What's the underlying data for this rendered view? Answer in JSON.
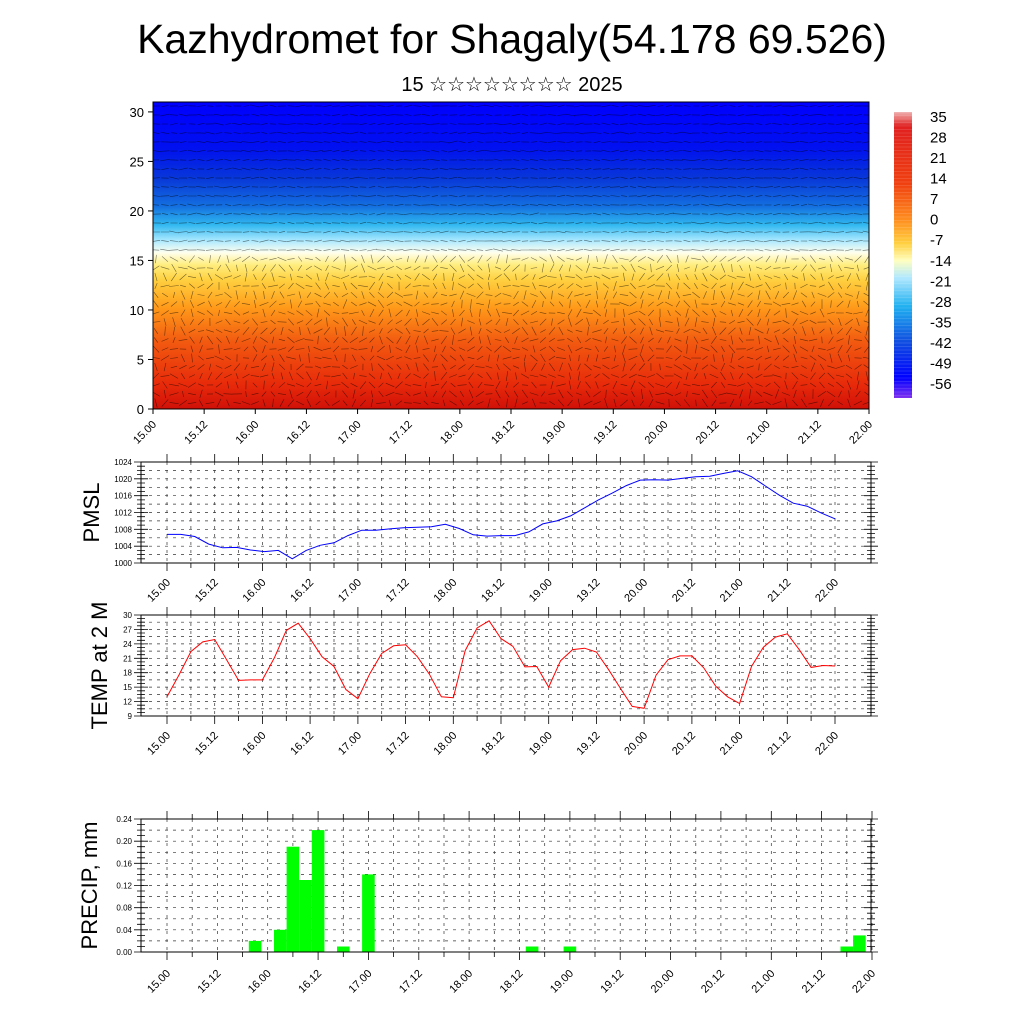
{
  "title": "Kazhydromet for Shagaly(54.178 69.526)",
  "subtitle": "15 ☆☆☆☆☆☆☆☆ 2025",
  "date_ticks": [
    "15.00",
    "15.12",
    "16.00",
    "16.12",
    "17.00",
    "17.12",
    "18.00",
    "18.12",
    "19.00",
    "19.12",
    "20.00",
    "20.12",
    "21.00",
    "21.12",
    "22.00"
  ],
  "chart_data": [
    {
      "type": "heatmap",
      "description_colorbar": "temperature",
      "ylim": [
        0,
        31
      ],
      "yticks": [
        "0",
        "5",
        "10",
        "15",
        "20",
        "25",
        "30"
      ],
      "xticks": [
        "15.00",
        "15.12",
        "16.00",
        "16.12",
        "17.00",
        "17.12",
        "18.00",
        "18.12",
        "19.00",
        "19.12",
        "20.00",
        "20.12",
        "21.00",
        "21.12",
        "22.00"
      ],
      "colorbar_labels": [
        "35",
        "28",
        "21",
        "14",
        "7",
        "0",
        "-7",
        "-14",
        "-21",
        "-28",
        "-35",
        "-42",
        "-49",
        "-56"
      ],
      "colorbar_range": [
        -63,
        42
      ],
      "colors": {
        "hot": "#e01a0a",
        "warm": "#ff8800",
        "mild": "#ffd040",
        "neutral": "#ffffc0",
        "cool": "#80d8ff",
        "cold": "#0a4ae0",
        "coldest": "#0000ff"
      }
    },
    {
      "type": "line",
      "ylabel": "PMSL",
      "ylim": [
        1000,
        1024
      ],
      "yticks": [
        "1000",
        "1004",
        "1008",
        "1012",
        "1016",
        "1020",
        "1024"
      ],
      "xticks": [
        "15.00",
        "15.12",
        "16.00",
        "16.12",
        "17.00",
        "17.12",
        "18.00",
        "18.12",
        "19.00",
        "19.12",
        "20.00",
        "20.12",
        "21.00",
        "21.12",
        "22.00"
      ],
      "color": "#0000ff",
      "values": [
        1006.8,
        1006.8,
        1006.3,
        1004.5,
        1003.6,
        1003.7,
        1003.1,
        1002.7,
        1003.0,
        1001.0,
        1003.0,
        1004.2,
        1004.8,
        1006.5,
        1007.8,
        1007.8,
        1008.1,
        1008.4,
        1008.5,
        1008.6,
        1009.2,
        1008.2,
        1006.7,
        1006.4,
        1006.5,
        1006.5,
        1007.4,
        1009.3,
        1010.0,
        1011.2,
        1013.1,
        1015.0,
        1016.6,
        1018.4,
        1019.7,
        1019.8,
        1019.7,
        1020.1,
        1020.5,
        1020.6,
        1021.3,
        1021.9,
        1020.5,
        1018.3,
        1016.1,
        1014.2,
        1013.5,
        1011.9,
        1010.5
      ]
    },
    {
      "type": "line",
      "ylabel": "TEMP at 2 M",
      "ylim": [
        9,
        30
      ],
      "yticks": [
        "9",
        "12",
        "15",
        "18",
        "21",
        "24",
        "27",
        "30"
      ],
      "xticks": [
        "15.00",
        "15.12",
        "16.00",
        "16.12",
        "17.00",
        "17.12",
        "18.00",
        "18.12",
        "19.00",
        "19.12",
        "20.00",
        "20.12",
        "21.00",
        "21.12",
        "22.00"
      ],
      "color": "#ff0000",
      "values": [
        13.0,
        17.5,
        22.4,
        24.4,
        24.9,
        20.7,
        16.4,
        16.5,
        16.5,
        21.1,
        26.8,
        28.3,
        25.1,
        21.3,
        19.3,
        14.5,
        12.6,
        17.8,
        22.0,
        23.6,
        23.8,
        21.3,
        17.7,
        13.0,
        12.8,
        22.6,
        27.3,
        28.8,
        25.1,
        23.5,
        19.2,
        19.3,
        15.0,
        20.5,
        22.8,
        23.1,
        22.3,
        18.7,
        14.8,
        11.0,
        10.6,
        17.5,
        20.7,
        21.5,
        21.5,
        19.0,
        15.2,
        13.0,
        11.6,
        19.3,
        23.3,
        25.4,
        26.1,
        22.8,
        19.1,
        19.5,
        19.4
      ]
    },
    {
      "type": "bar",
      "ylabel": "PRECIP, mm",
      "ylim": [
        0,
        0.24
      ],
      "yticks": [
        "0.00",
        "0.04",
        "0.08",
        "0.12",
        "0.16",
        "0.20",
        "0.24"
      ],
      "xticks": [
        "15.00",
        "15.12",
        "16.00",
        "16.12",
        "17.00",
        "17.12",
        "18.00",
        "18.12",
        "19.00",
        "19.12",
        "20.00",
        "20.12",
        "21.00",
        "21.12",
        "22.00"
      ],
      "color": "#00ff00",
      "bars": [
        {
          "hour": 21,
          "value": 0.02
        },
        {
          "hour": 27,
          "value": 0.04
        },
        {
          "hour": 30,
          "value": 0.19
        },
        {
          "hour": 33,
          "value": 0.13
        },
        {
          "hour": 36,
          "value": 0.22
        },
        {
          "hour": 42,
          "value": 0.01
        },
        {
          "hour": 48,
          "value": 0.14
        },
        {
          "hour": 87,
          "value": 0.01
        },
        {
          "hour": 96,
          "value": 0.01
        },
        {
          "hour": 162,
          "value": 0.01
        },
        {
          "hour": 165,
          "value": 0.03
        }
      ]
    }
  ]
}
